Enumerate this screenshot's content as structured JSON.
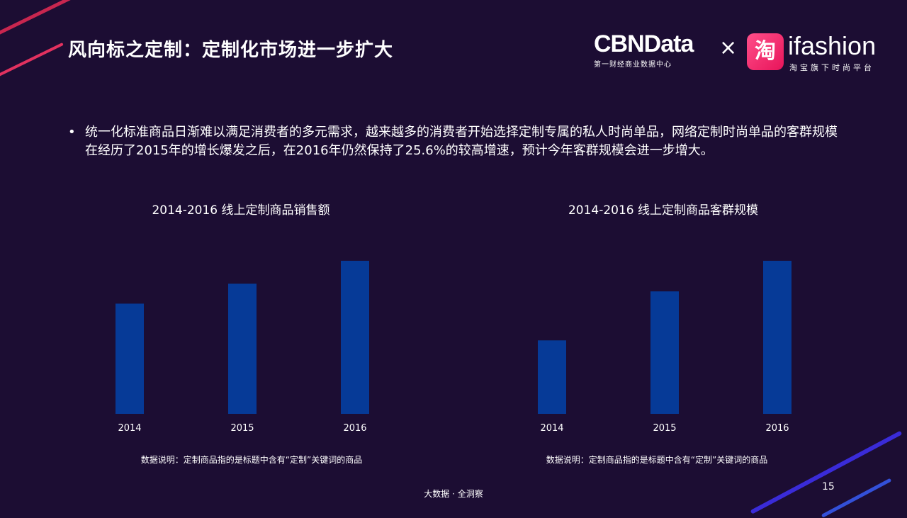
{
  "slide": {
    "title": "风向标之定制：定制化市场进一步扩大",
    "bullet": "统一化标准商品日渐难以满足消费者的多元需求，越来越多的消费者开始选择定制专属的私人时尚单品，网络定制时尚单品的客群规模在经历了2015年的增长爆发之后，在2016年仍然保持了25.6%的较高增速，预计今年客群规模会进一步增大。",
    "footer": "大数据 · 全洞察",
    "page_number": "15"
  },
  "logos": {
    "cbndata": "CBNData",
    "cbndata_sub": "第一财经商业数据中心",
    "times": "×",
    "taobao_char": "淘",
    "ifashion": "ifashion",
    "ifashion_sub": "淘宝旗下时尚平台"
  },
  "colors": {
    "background": "#1c0d33",
    "bar": "#063a97",
    "accent_pink": "#e2315f",
    "accent_blue": "#1d3fb0"
  },
  "chart_data": [
    {
      "type": "bar",
      "title": "2014-2016  线上定制商品销售额",
      "categories": [
        "2014",
        "2015",
        "2016"
      ],
      "values": [
        0.72,
        0.85,
        1.0
      ],
      "note": "数据说明：定制商品指的是标题中含有“定制”关键词的商品"
    },
    {
      "type": "bar",
      "title": "2014-2016  线上定制商品客群规模",
      "categories": [
        "2014",
        "2015",
        "2016"
      ],
      "values": [
        0.48,
        0.8,
        1.0
      ],
      "note": "数据说明：定制商品指的是标题中含有“定制”关键词的商品"
    }
  ]
}
